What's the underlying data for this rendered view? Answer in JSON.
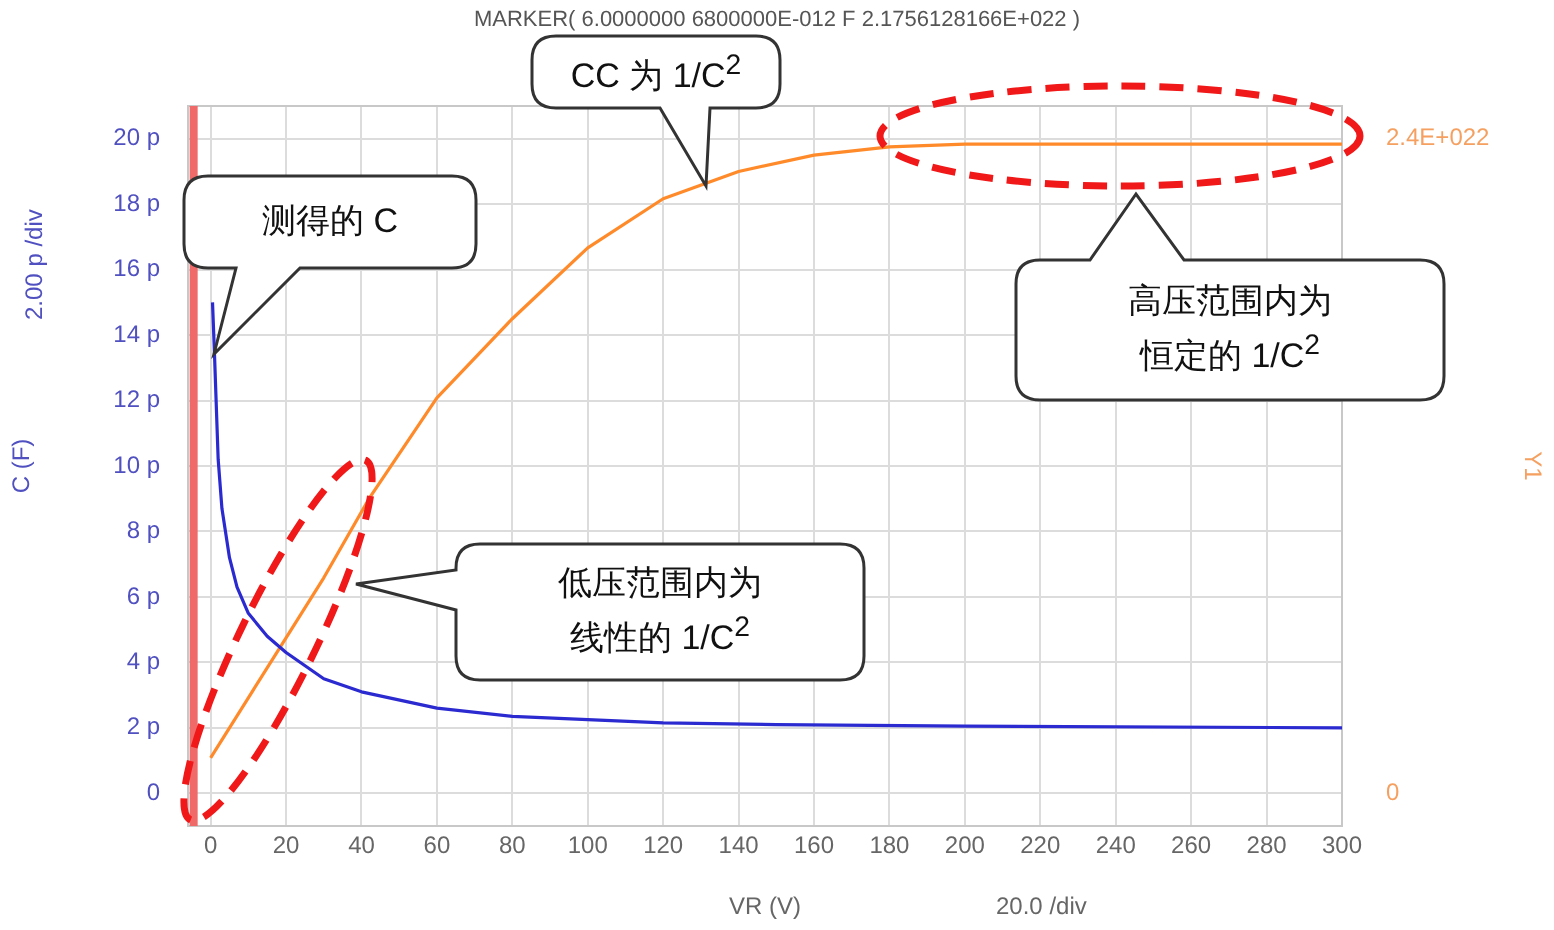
{
  "chart_data": {
    "type": "line",
    "title": "MARKER( 6.0000000 6800000E-012 F  2.1756128166E+022 )",
    "xlabel": "VR (V)",
    "ylabel": "C (F)",
    "y2label": "Y1",
    "xlim": [
      -6,
      300
    ],
    "xticks": [
      0,
      20,
      40,
      60,
      80,
      100,
      120,
      140,
      160,
      180,
      200,
      220,
      240,
      260,
      280,
      300
    ],
    "ylim": [
      -1,
      21
    ],
    "yticks": [
      {
        "value": 0,
        "label": "0"
      },
      {
        "value": 2,
        "label": "2 p"
      },
      {
        "value": 4,
        "label": "4 p"
      },
      {
        "value": 6,
        "label": "6 p"
      },
      {
        "value": 8,
        "label": "8 p"
      },
      {
        "value": 10,
        "label": "10 p"
      },
      {
        "value": 12,
        "label": "12 p"
      },
      {
        "value": 14,
        "label": "14 p"
      },
      {
        "value": 16,
        "label": "16 p"
      },
      {
        "value": 18,
        "label": "18 p"
      },
      {
        "value": 20,
        "label": "20 p"
      }
    ],
    "y2lim": [
      -1.2e+21,
      2.52e+22
    ],
    "y2ticks": [
      {
        "value": 0,
        "label": "0"
      },
      {
        "value": 2.4e+22,
        "label": "2.4E+022"
      }
    ],
    "grid": true,
    "legend": false,
    "marker": "none",
    "line_style": "solid",
    "series": [
      {
        "color": "#2a2ad0",
        "x": [
          0.5,
          1,
          2,
          3,
          5,
          7,
          10,
          15,
          20,
          30,
          40,
          60,
          80,
          100,
          120,
          150,
          200,
          300
        ],
        "values": [
          15,
          13.5,
          10.2,
          8.7,
          7.2,
          6.3,
          5.5,
          4.8,
          4.3,
          3.5,
          3.1,
          2.6,
          2.35,
          2.25,
          2.15,
          2.1,
          2.05,
          2.0
        ]
      },
      {
        "color": "#ff8a2a",
        "axis": "y2",
        "x": [
          0,
          10,
          20,
          30,
          42,
          60,
          80,
          100,
          120,
          140,
          160,
          180,
          200,
          300
        ],
        "values": [
          1.3e+21,
          3.5e+21,
          5.7e+21,
          7.9e+21,
          1.08e+22,
          1.45e+22,
          1.74e+22,
          2e+22,
          2.18e+22,
          2.28e+22,
          2.34e+22,
          2.37e+22,
          2.38e+22,
          2.38e+22
        ]
      }
    ],
    "ref_lines": [
      {
        "axis": "x",
        "value": -4.5,
        "color": "#f06a6a"
      }
    ],
    "annotations": [
      "20.0 /div",
      "2.00 p /div",
      "测得的 C",
      "CC 为 1/C$^{2}$",
      "高压范围内为恒定的 1/C$^{2}$",
      "低压范围内为线性的 1/C$^{2}$"
    ]
  }
}
